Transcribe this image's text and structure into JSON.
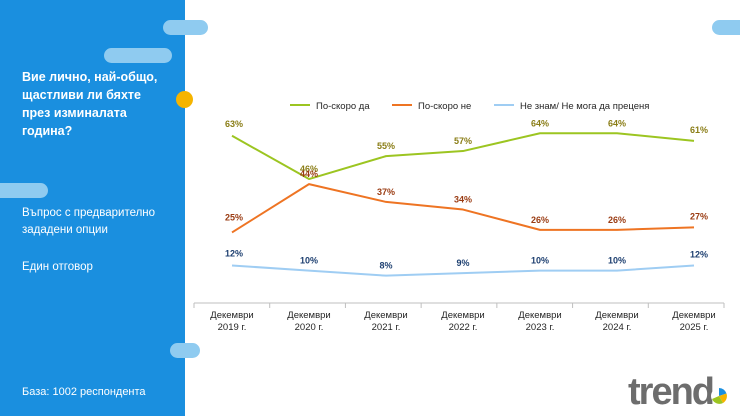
{
  "sidebar": {
    "question": "Вие лично, най-общо, щастливи ли бяхте през изминалата година?",
    "note_options": "Въпрос с предварително зададени опции",
    "note_answer": "Един отговор",
    "base": "База:  1002 респондента"
  },
  "logo": {
    "text": "trend",
    "accent_color": "#1a8fdf"
  },
  "chart_data": {
    "type": "line",
    "categories": [
      "Декември 2019 г.",
      "Декември 2020 г.",
      "Декември 2021 г.",
      "Декември 2022 г.",
      "Декември 2023 г.",
      "Декември 2024 г.",
      "Декември 2025 г."
    ],
    "category_lines": [
      [
        "Декември",
        "2019 г."
      ],
      [
        "Декември",
        "2020 г."
      ],
      [
        "Декември",
        "2021 г."
      ],
      [
        "Декември",
        "2022 г."
      ],
      [
        "Декември",
        "2023 г."
      ],
      [
        "Декември",
        "2024 г."
      ],
      [
        "Декември",
        "2025 г."
      ]
    ],
    "ylim": [
      0,
      70
    ],
    "grid": false,
    "legend_position": "top",
    "series": [
      {
        "name": "По-скоро да",
        "values": [
          63,
          46,
          55,
          57,
          64,
          64,
          61
        ],
        "labels": [
          "63%",
          "46%",
          "55%",
          "57%",
          "64%",
          "64%",
          "61%"
        ],
        "color": "#9cc521",
        "label_color": "#8a7d16"
      },
      {
        "name": "По-скоро не",
        "values": [
          25,
          44,
          37,
          34,
          26,
          26,
          27
        ],
        "labels": [
          "25%",
          "44%",
          "37%",
          "34%",
          "26%",
          "26%",
          "27%"
        ],
        "color": "#ee7423",
        "label_color": "#9a3b12"
      },
      {
        "name": "Не знам/ Не мога да преценя",
        "values": [
          12,
          10,
          8,
          9,
          10,
          10,
          12
        ],
        "labels": [
          "12%",
          "10%",
          "8%",
          "9%",
          "10%",
          "10%",
          "12%"
        ],
        "color": "#9fcdf3",
        "label_color": "#1d3f70"
      }
    ]
  }
}
